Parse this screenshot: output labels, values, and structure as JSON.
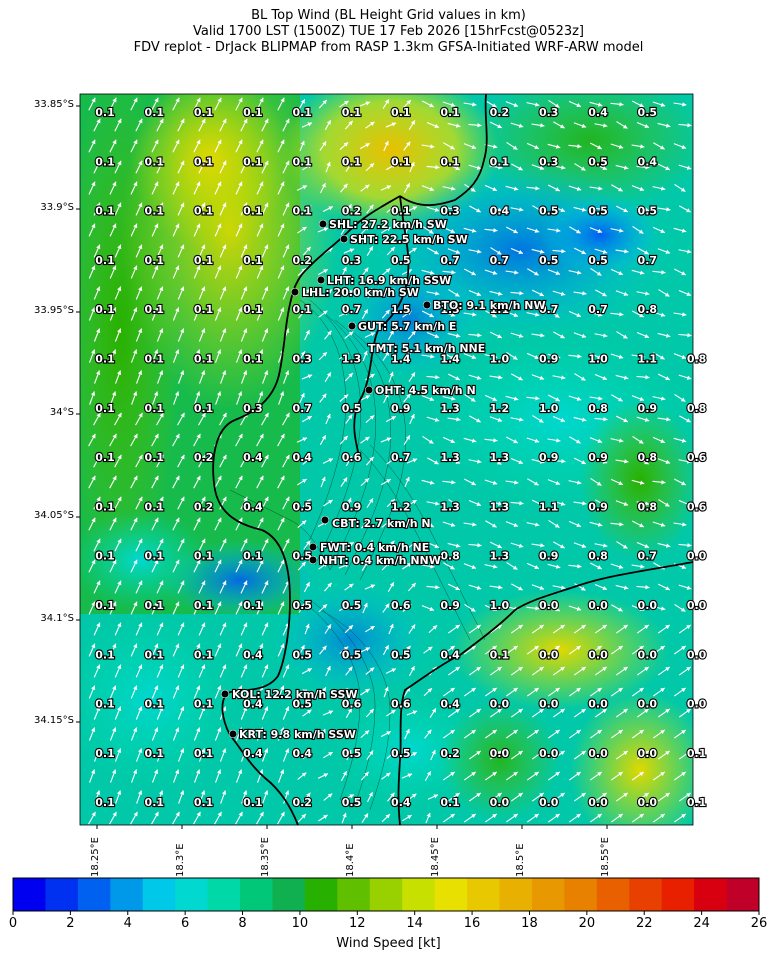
{
  "header": {
    "line1": "BL Top Wind (BL Height Grid values in km)",
    "line2": "Valid 1700 LST (1500Z) TUE 17 Feb 2026 [15hrFcst@0523z]",
    "line3": "FDV replot - DrJack BLIPMAP from RASP 1.3km GFSA-Initiated WRF-ARW model"
  },
  "axes": {
    "lat_labels": [
      "33.85°S",
      "33.9°S",
      "33.95°S",
      "34°S",
      "34.05°S",
      "34.1°S",
      "34.15°S"
    ],
    "lon_labels": [
      "18.25°E",
      "18.3°E",
      "18.35°E",
      "18.4°E",
      "18.45°E",
      "18.5°E",
      "18.55°E"
    ]
  },
  "grid_values": [
    [
      "0.1",
      "0.1",
      "0.1",
      "0.1",
      "0.1",
      "0.1",
      "0.1",
      "0.1",
      "0.2",
      "0.3",
      "0.4",
      "0.5",
      ""
    ],
    [
      "0.1",
      "0.1",
      "0.1",
      "0.1",
      "0.1",
      "0.1",
      "0.1",
      "0.1",
      "0.1",
      "0.3",
      "0.5",
      "0.4",
      ""
    ],
    [
      "0.1",
      "0.1",
      "0.1",
      "0.1",
      "0.1",
      "0.2",
      "0.1",
      "0.3",
      "0.4",
      "0.5",
      "0.5",
      "0.5",
      ""
    ],
    [
      "0.1",
      "0.1",
      "0.1",
      "0.1",
      "0.2",
      "0.3",
      "0.5",
      "0.7",
      "0.7",
      "0.5",
      "0.5",
      "0.7",
      ""
    ],
    [
      "0.1",
      "0.1",
      "0.1",
      "0.1",
      "0.1",
      "0.7",
      "1.5",
      "1.3",
      "1.1",
      "0.7",
      "0.7",
      "0.8",
      ""
    ],
    [
      "0.1",
      "0.1",
      "0.1",
      "0.1",
      "0.3",
      "1.3",
      "1.4",
      "1.4",
      "1.0",
      "0.9",
      "1.0",
      "1.1",
      "0.8"
    ],
    [
      "0.1",
      "0.1",
      "0.1",
      "0.3",
      "0.7",
      "0.5",
      "0.9",
      "1.3",
      "1.2",
      "1.0",
      "0.8",
      "0.9",
      "0.8"
    ],
    [
      "0.1",
      "0.1",
      "0.2",
      "0.4",
      "0.4",
      "0.6",
      "0.7",
      "1.3",
      "1.3",
      "0.9",
      "0.9",
      "0.8",
      "0.6"
    ],
    [
      "0.1",
      "0.1",
      "0.2",
      "0.4",
      "0.5",
      "0.9",
      "1.2",
      "1.3",
      "1.3",
      "1.1",
      "0.9",
      "0.8",
      "0.6"
    ],
    [
      "0.1",
      "0.1",
      "0.1",
      "0.1",
      "0.5",
      "",
      "",
      "0.8",
      "1.3",
      "0.9",
      "0.8",
      "0.7",
      "0.0"
    ],
    [
      "0.1",
      "0.1",
      "0.1",
      "0.1",
      "0.5",
      "0.5",
      "0.6",
      "0.9",
      "1.0",
      "0.0",
      "0.0",
      "0.0",
      "0.0"
    ],
    [
      "0.1",
      "0.1",
      "0.1",
      "0.4",
      "0.5",
      "0.5",
      "0.5",
      "0.4",
      "0.1",
      "0.0",
      "0.0",
      "0.0",
      "0.0"
    ],
    [
      "0.1",
      "0.1",
      "0.1",
      "0.4",
      "0.5",
      "0.6",
      "0.6",
      "0.4",
      "0.0",
      "0.0",
      "0.0",
      "0.0",
      "0.0"
    ],
    [
      "0.1",
      "0.1",
      "0.1",
      "0.4",
      "0.4",
      "0.5",
      "0.5",
      "0.2",
      "0.0",
      "0.0",
      "0.0",
      "0.0",
      "0.1"
    ],
    [
      "0.1",
      "0.1",
      "0.1",
      "0.1",
      "0.2",
      "0.5",
      "0.4",
      "0.1",
      "0.0",
      "0.0",
      "0.0",
      "0.0",
      "0.1"
    ]
  ],
  "stations": [
    {
      "label": "SHL: 27.2 km/h SW"
    },
    {
      "label": "SHT: 22.5 km/h SW"
    },
    {
      "label": "LHT: 16.9 km/h SSW"
    },
    {
      "label": "LHL: 20.0 km/h SW"
    },
    {
      "label": "BTO: 9.1 km/h NW"
    },
    {
      "label": "GUT: 5.7 km/h E"
    },
    {
      "label": "TMT: 5.1 km/h NNE"
    },
    {
      "label": "OHT: 4.5 km/h N"
    },
    {
      "label": "CBT: 2.7 km/h N"
    },
    {
      "label": "FWT: 0.4 km/h NE"
    },
    {
      "label": "NHT: 0.4 km/h NNW"
    },
    {
      "label": "KOL: 12.2 km/h SSW"
    },
    {
      "label": "KRT: 9.8 km/h SSW"
    }
  ],
  "colorbar": {
    "title": "Wind Speed [kt]",
    "ticks": [
      "0",
      "2",
      "4",
      "6",
      "8",
      "10",
      "12",
      "14",
      "16",
      "18",
      "20",
      "22",
      "24",
      "26"
    ],
    "colors": [
      "#0000f0",
      "#0030f0",
      "#0060f0",
      "#0098e8",
      "#00c8e8",
      "#00d8d0",
      "#00d8a8",
      "#00c878",
      "#10b050",
      "#28b000",
      "#60c000",
      "#98d000",
      "#c8e000",
      "#e8e000",
      "#e8c800",
      "#e8b000",
      "#e89800",
      "#e88000",
      "#e86000",
      "#e84000",
      "#e82000",
      "#d80010",
      "#c00028"
    ]
  }
}
